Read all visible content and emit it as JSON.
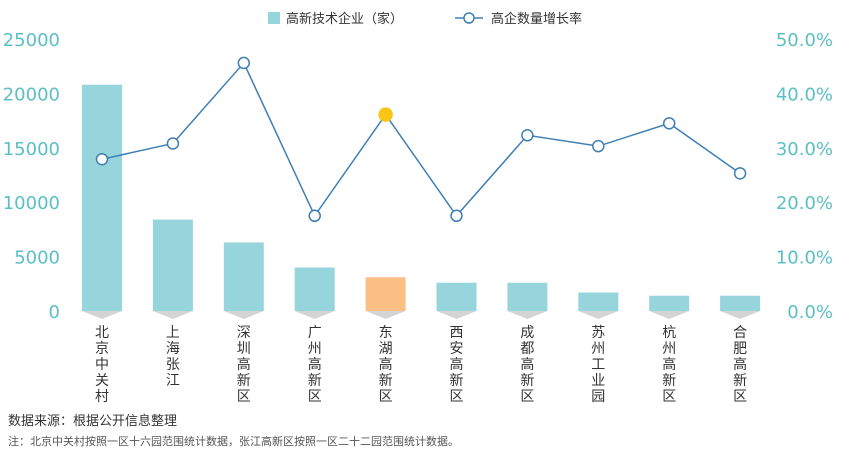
{
  "chart_data": {
    "type": "bar+line",
    "categories": [
      "北京中关村",
      "上海张江",
      "深圳高新区",
      "广州高新区",
      "东湖高新区",
      "西安高新区",
      "成都高新区",
      "苏州工业园",
      "杭州高新区",
      "合肥高新区"
    ],
    "series": [
      {
        "name": "高新技术企业（家）",
        "type": "bar",
        "axis": "left",
        "values": [
          20800,
          8400,
          6300,
          4000,
          3100,
          2600,
          2600,
          1700,
          1400,
          1400
        ],
        "color": "#97d5dc",
        "highlight_index": 4,
        "highlight_color": "#fbbf86"
      },
      {
        "name": "高企数量增长率",
        "type": "line",
        "axis": "right",
        "values": [
          27.9,
          30.8,
          45.6,
          17.5,
          36.1,
          17.5,
          32.3,
          30.3,
          34.5,
          25.3
        ],
        "color": "#3f7fb5",
        "highlight_index": 4,
        "highlight_color": "#f9c516"
      }
    ],
    "left_axis": {
      "ticks": [
        "0",
        "5000",
        "10000",
        "15000",
        "20000",
        "25000"
      ],
      "min": 0,
      "max": 25000
    },
    "right_axis": {
      "ticks": [
        "0.0%",
        "10.0%",
        "20.0%",
        "30.0%",
        "40.0%",
        "50.0%"
      ],
      "min": 0,
      "max": 50
    },
    "axis_color": "#5bbfc4",
    "legend_position": "top-center",
    "grid": false
  },
  "source": "数据来源：根据公开信息整理",
  "note": "注：北京中关村按照一区十六园范围统计数据，张江高新区按照一区二十二园范围统计数据。"
}
